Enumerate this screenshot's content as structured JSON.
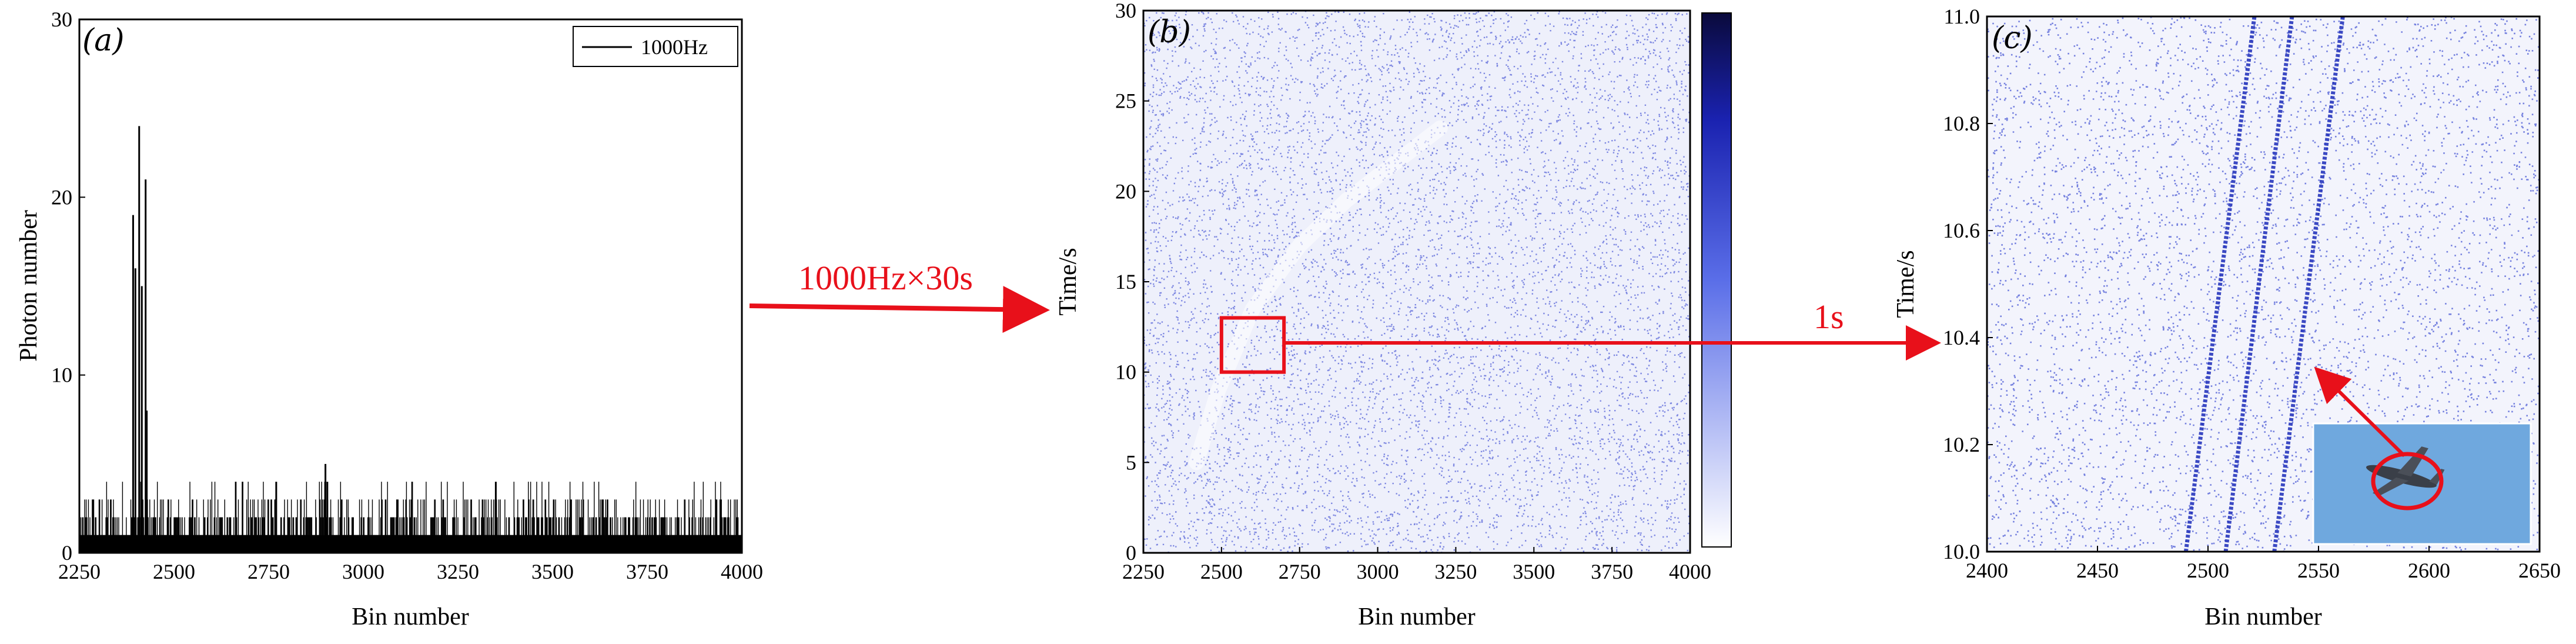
{
  "chart_data": [
    {
      "type": "bar",
      "panel_label": "(a)",
      "xlabel": "Bin number",
      "ylabel": "Photon number",
      "xlim": [
        2250,
        4000
      ],
      "ylim": [
        0,
        30
      ],
      "xticks": [
        "2250",
        "2500",
        "2750",
        "3000",
        "3250",
        "3500",
        "3750",
        "4000"
      ],
      "yticks": [
        "0",
        "10",
        "20",
        "30"
      ],
      "legend": [
        "1000Hz"
      ],
      "legend_position": "top-right",
      "series": [
        {
          "name": "1000Hz",
          "peaks": [
            {
              "x": 2392,
              "y": 19
            },
            {
              "x": 2398,
              "y": 16
            },
            {
              "x": 2408,
              "y": 24
            },
            {
              "x": 2415,
              "y": 15
            },
            {
              "x": 2425,
              "y": 21
            },
            {
              "x": 2428,
              "y": 8
            },
            {
              "x": 2900,
              "y": 5
            },
            {
              "x": 2905,
              "y": 4
            },
            {
              "x": 2770,
              "y": 4
            },
            {
              "x": 3350,
              "y": 4
            }
          ],
          "baseline_range": [
            0,
            3
          ]
        }
      ]
    },
    {
      "type": "heatmap",
      "panel_label": "(b)",
      "xlabel": "Bin number",
      "ylabel": "Time/s",
      "xlim": [
        2250,
        4000
      ],
      "ylim": [
        0,
        30
      ],
      "xticks": [
        "2250",
        "2500",
        "2750",
        "3000",
        "3250",
        "3500",
        "3750",
        "4000"
      ],
      "yticks": [
        "0",
        "5",
        "10",
        "15",
        "20",
        "25",
        "30"
      ],
      "colorbar": true,
      "colormap": [
        "#ffffff",
        "#0a0a3c"
      ],
      "trajectory": [
        [
          2420,
          5
        ],
        [
          2490,
          9
        ],
        [
          2600,
          13.5
        ],
        [
          2750,
          17
        ],
        [
          2900,
          19.5
        ],
        [
          3050,
          21.5
        ],
        [
          3200,
          23.5
        ]
      ],
      "highlight_box": {
        "xlim": [
          2500,
          2700
        ],
        "ylim": [
          10,
          13
        ]
      }
    },
    {
      "type": "heatmap",
      "panel_label": "(c)",
      "xlabel": "Bin number",
      "ylabel": "Time/s",
      "xlim": [
        2400,
        2650
      ],
      "ylim": [
        10.0,
        11.0
      ],
      "xticks": [
        "2400",
        "2450",
        "2500",
        "2550",
        "2600",
        "2650"
      ],
      "yticks": [
        "10.0",
        "10.2",
        "10.4",
        "10.6",
        "10.8",
        "11.0"
      ],
      "tracks": [
        {
          "x_start": 2490,
          "x_end": 2521,
          "y_start": 10.0,
          "y_end": 11.0
        },
        {
          "x_start": 2508,
          "x_end": 2538,
          "y_start": 10.0,
          "y_end": 11.0
        },
        {
          "x_start": 2530,
          "x_end": 2561,
          "y_start": 10.0,
          "y_end": 11.0
        }
      ],
      "inset": "airplane-photo"
    }
  ],
  "annotations": {
    "arrow1_label": "1000Hz×30s",
    "arrow2_label": "1s"
  },
  "colors": {
    "scatter_blue": "#2233cc",
    "annotation_red": "#e8101a",
    "inset_sky": "#6fa8de"
  }
}
